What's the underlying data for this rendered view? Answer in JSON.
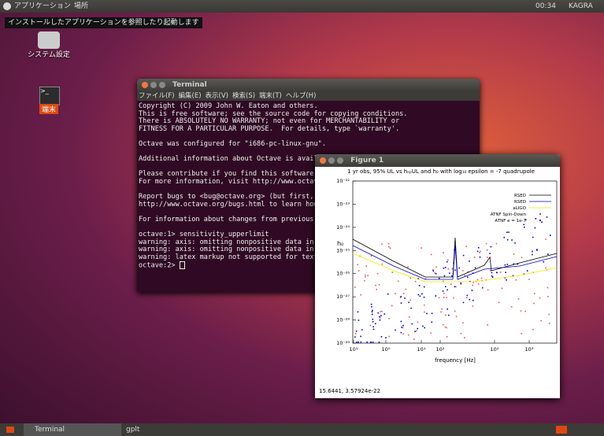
{
  "panel": {
    "apps": "アプリケーション",
    "places": "場所",
    "clock": "00:34",
    "user": "KAGRA"
  },
  "tooltip": "インストールしたアプリケーションを参照したり起動します",
  "desktop": {
    "icons": [
      {
        "label": "システム設定"
      },
      {
        "label": "端末"
      }
    ]
  },
  "terminal": {
    "title": "Terminal",
    "menu": [
      "ファイル(F)",
      "編集(E)",
      "表示(V)",
      "検索(S)",
      "端末(T)",
      "ヘルプ(H)"
    ],
    "blocks": [
      [
        "Copyright (C) 2009 John W. Eaton and others.",
        "This is free software; see the source code for copying conditions.",
        "There is ABSOLUTELY NO WARRANTY; not even for MERCHANTABILITY or",
        "FITNESS FOR A PARTICULAR PURPOSE.  For details, type `warranty'."
      ],
      [
        "Octave was configured for \"i686-pc-linux-gnu\"."
      ],
      [
        "Additional information about Octave is available at http://www.octave.org."
      ],
      [
        "Please contribute if you find this software useful.",
        "For more information, visit http://www.octave.org/help-wanted.html"
      ],
      [
        "Report bugs to <bug@octave.org> (but first, please read",
        "http://www.octave.org/bugs.html to learn how to write a helpful report)."
      ],
      [
        "For information about changes from previous versions, type `news'."
      ],
      [
        "octave:1> sensitivity_upperlimit",
        "warning: axis: omitting nonpositive data in log plot",
        "warning: axis: omitting nonpositive data in log plot",
        "warning: latex markup not supported for text objects",
        "octave:2> "
      ]
    ]
  },
  "figure": {
    "title": "Figure 1",
    "status": "15.6441,  3.57924e-22",
    "plot": {
      "title": "1 yr obs, 95% UL vs hₛₚUL and h₀ with log₁₀ epsilon = -7 quadrupole",
      "xlabel": "frequency [Hz]",
      "ylabel": "h₀",
      "legend": [
        "RSED",
        "RSED",
        "aLIGO",
        "ATNF Spin-Down",
        "ATNF e = 1e-7"
      ],
      "yticks": [
        "10⁻²²",
        "10⁻²³",
        "10⁻²⁴",
        "10⁻²⁵",
        "10⁻²⁶",
        "10⁻²⁷",
        "10⁻²⁸",
        "10⁻²⁹"
      ],
      "xticks": [
        "10¹",
        "10⁰",
        "10¹",
        "10²",
        "10²",
        "10³"
      ]
    }
  },
  "taskbar": [
    "Terminal",
    "gplt"
  ]
}
